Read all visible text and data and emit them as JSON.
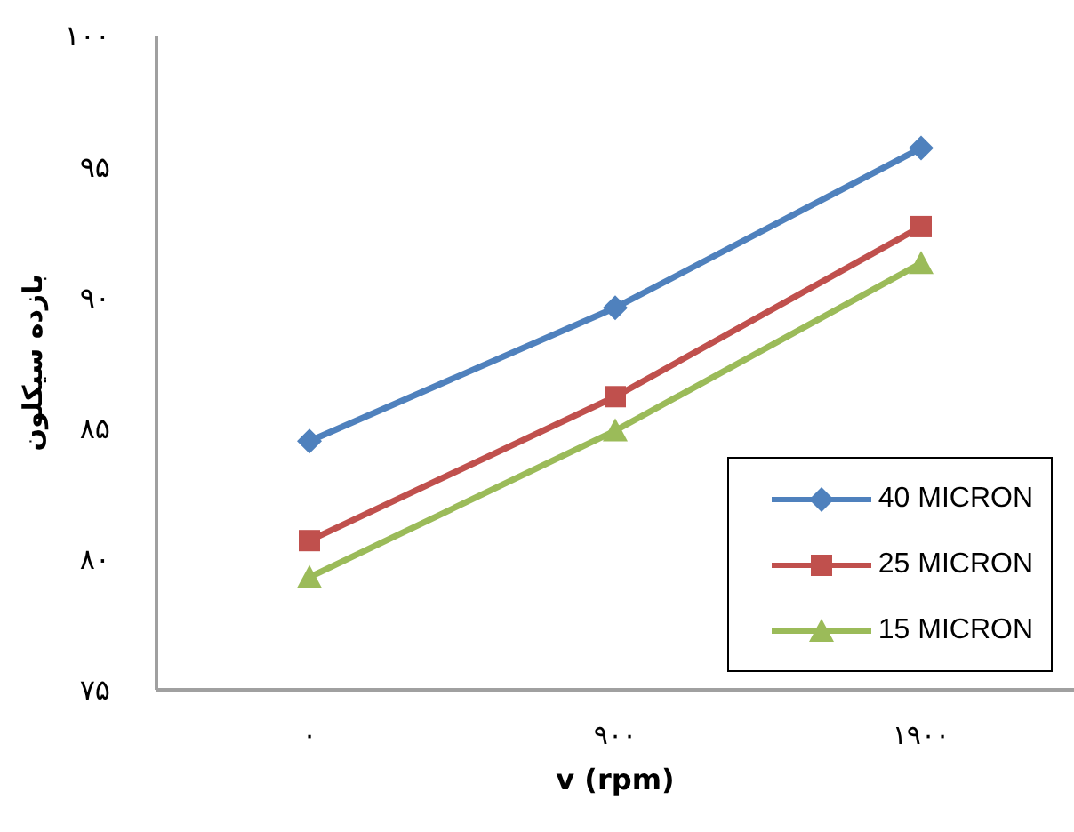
{
  "chart_data": {
    "type": "line",
    "xlabel": "v (rpm)",
    "ylabel": "بازده سیکلون",
    "categories": [
      "۰",
      "۹۰۰",
      "۱۹۰۰"
    ],
    "series": [
      {
        "name": "40 MICRON",
        "color": "#4f81bd",
        "marker": "diamond",
        "values": [
          84.5,
          89.6,
          95.7
        ]
      },
      {
        "name": "25 MICRON",
        "color": "#c0504d",
        "marker": "square",
        "values": [
          80.7,
          86.2,
          92.7
        ]
      },
      {
        "name": "15 MICRON",
        "color": "#9bbb59",
        "marker": "triangle",
        "values": [
          79.3,
          84.9,
          91.3
        ]
      }
    ],
    "ylim": [
      75,
      100
    ],
    "yticks": [
      {
        "value": 75,
        "label": "۷۵"
      },
      {
        "value": 80,
        "label": "۸۰"
      },
      {
        "value": 85,
        "label": "۸۵"
      },
      {
        "value": 90,
        "label": "۹۰"
      },
      {
        "value": 95,
        "label": "۹۵"
      },
      {
        "value": 100,
        "label": "۱۰۰"
      }
    ],
    "grid": false,
    "legend": "bottom right",
    "line_style": "solid"
  }
}
